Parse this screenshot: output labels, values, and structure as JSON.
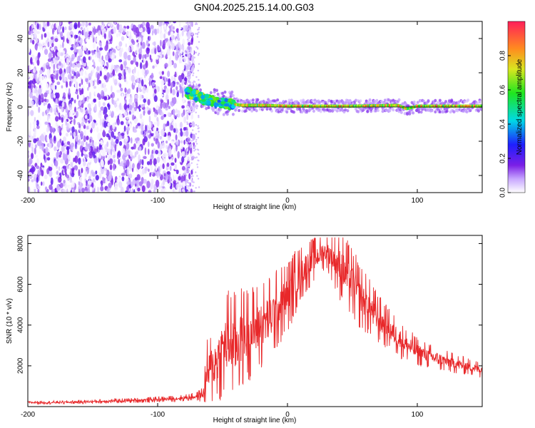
{
  "title": "GN04.2025.215.14.00.G03",
  "colors": {
    "snr_line": "#e8282a",
    "spectrogram_noise": "#7a1fe6",
    "reference_line": "#000000"
  },
  "chart_data": [
    {
      "type": "heatmap",
      "xlabel": "Height of straight line (km)",
      "ylabel": "Frequency (Hz)",
      "xlim": [
        -200,
        150
      ],
      "ylim": [
        -50,
        50
      ],
      "xticks": [
        {
          "value": -200,
          "label": "-200"
        },
        {
          "value": -100,
          "label": "-100"
        },
        {
          "value": 0,
          "label": "0"
        },
        {
          "value": 100,
          "label": "100"
        }
      ],
      "yticks": [
        {
          "value": -40,
          "label": "-40"
        },
        {
          "value": -20,
          "label": "-20"
        },
        {
          "value": 0,
          "label": "0"
        },
        {
          "value": 20,
          "label": "20"
        },
        {
          "value": 40,
          "label": "40"
        }
      ],
      "colorbar": {
        "label": "Normalized spectral amplitude",
        "range": [
          0,
          1
        ],
        "colormap": "rainbow-white-to-red",
        "ticks": [
          {
            "value": 0.0,
            "label": "0.0"
          },
          {
            "value": 0.2,
            "label": "0.2"
          },
          {
            "value": 0.4,
            "label": "0.4"
          },
          {
            "value": 0.6,
            "label": "0.6"
          },
          {
            "value": 0.8,
            "label": "0.8"
          }
        ]
      },
      "regions": [
        {
          "x_range": [
            -200,
            -72
          ],
          "y_range": [
            -50,
            50
          ],
          "description": "broadband noise",
          "amplitude_range": [
            0.0,
            0.2
          ]
        },
        {
          "x_range": [
            -78,
            -40
          ],
          "y_range": [
            -3,
            10
          ],
          "description": "signal onset",
          "amplitude_range": [
            0.3,
            0.7
          ]
        },
        {
          "x_range": [
            -40,
            150
          ],
          "y_range": [
            -1,
            1
          ],
          "description": "carrier",
          "amplitude_range": [
            0.7,
            1.0
          ]
        }
      ],
      "signal_track": [
        {
          "x": -75,
          "y": 8
        },
        {
          "x": -65,
          "y": 5
        },
        {
          "x": -55,
          "y": 3
        },
        {
          "x": -45,
          "y": 2
        },
        {
          "x": -35,
          "y": 1
        },
        {
          "x": -20,
          "y": 1
        },
        {
          "x": 0,
          "y": 0.5
        },
        {
          "x": 50,
          "y": 0.5
        },
        {
          "x": 85,
          "y": 1
        },
        {
          "x": 92,
          "y": -1
        },
        {
          "x": 100,
          "y": 0.5
        },
        {
          "x": 150,
          "y": 0.5
        }
      ],
      "reference_line": {
        "y": 0,
        "x_range": [
          -35,
          150
        ]
      }
    },
    {
      "type": "line",
      "xlabel": "Height of straight line (km)",
      "ylabel": "SNR (10 * v/v)",
      "xlim": [
        -200,
        150
      ],
      "ylim": [
        0,
        8400
      ],
      "xticks": [
        {
          "value": -200,
          "label": "-200"
        },
        {
          "value": -100,
          "label": "-100"
        },
        {
          "value": 0,
          "label": "0"
        },
        {
          "value": 100,
          "label": "100"
        }
      ],
      "yticks": [
        {
          "value": 2000,
          "label": "2000"
        },
        {
          "value": 4000,
          "label": "4000"
        },
        {
          "value": 6000,
          "label": "6000"
        },
        {
          "value": 8000,
          "label": "8000"
        }
      ],
      "series": [
        {
          "x": [
            -200,
            -180,
            -160,
            -140,
            -120,
            -100,
            -90,
            -80,
            -70,
            -65,
            -62,
            -55,
            -50,
            -45,
            -40,
            -35,
            -30,
            -25,
            -20,
            -15,
            -10,
            -5,
            0,
            5,
            10,
            15,
            20,
            25,
            30,
            35,
            40,
            45,
            50,
            55,
            60,
            65,
            70,
            75,
            80,
            85,
            90,
            95,
            100,
            110,
            120,
            130,
            140,
            150
          ],
          "y": [
            200,
            200,
            230,
            260,
            300,
            350,
            380,
            420,
            500,
            600,
            1600,
            2200,
            2800,
            3200,
            3000,
            3400,
            3600,
            3800,
            4000,
            4300,
            4600,
            5000,
            5400,
            6000,
            6500,
            6900,
            7200,
            7500,
            7600,
            7300,
            6900,
            6500,
            6000,
            5500,
            5100,
            4700,
            4300,
            4000,
            3700,
            3400,
            3100,
            2900,
            2700,
            2450,
            2250,
            2100,
            1950,
            1800
          ],
          "noise_amplitude": [
            60,
            60,
            70,
            80,
            90,
            100,
            110,
            120,
            150,
            300,
            1200,
            1500,
            1800,
            2000,
            1900,
            1800,
            1700,
            1600,
            1600,
            1500,
            1500,
            1400,
            1300,
            1200,
            1000,
            900,
            800,
            700,
            600,
            900,
            1200,
            1300,
            1300,
            1200,
            1100,
            1000,
            900,
            800,
            700,
            700,
            600,
            600,
            500,
            450,
            400,
            350,
            300,
            300
          ]
        }
      ]
    }
  ]
}
